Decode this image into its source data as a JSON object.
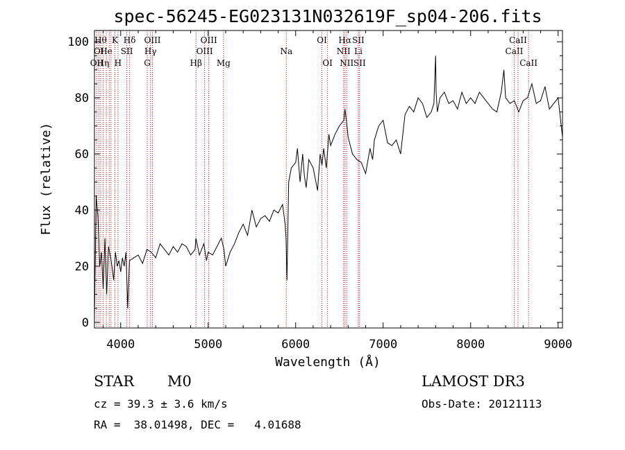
{
  "chart_data": {
    "type": "line",
    "title": "spec-56245-EG023131N032619F_sp04-206.fits",
    "xlabel": "Wavelength (Å)",
    "ylabel": "Flux (relative)",
    "xlim": [
      3700,
      9050
    ],
    "ylim": [
      -2,
      104
    ],
    "x_ticks": [
      4000,
      5000,
      6000,
      7000,
      8000,
      9000
    ],
    "y_ticks": [
      0,
      20,
      40,
      60,
      80,
      100
    ],
    "series": [
      {
        "x": [
          3700,
          3720,
          3740,
          3760,
          3780,
          3800,
          3820,
          3840,
          3860,
          3880,
          3900,
          3920,
          3940,
          3960,
          3980,
          4000,
          4020,
          4040,
          4060,
          4080,
          4100,
          4150,
          4200,
          4250,
          4300,
          4350,
          4400,
          4450,
          4500,
          4550,
          4600,
          4650,
          4700,
          4750,
          4800,
          4850,
          4860,
          4900,
          4950,
          4980,
          5000,
          5050,
          5100,
          5150,
          5180,
          5200,
          5250,
          5300,
          5350,
          5400,
          5450,
          5500,
          5550,
          5600,
          5650,
          5700,
          5750,
          5800,
          5850,
          5880,
          5890,
          5900,
          5920,
          5950,
          6000,
          6020,
          6050,
          6080,
          6100,
          6120,
          6150,
          6200,
          6250,
          6280,
          6300,
          6320,
          6350,
          6380,
          6400,
          6450,
          6500,
          6550,
          6563,
          6580,
          6600,
          6650,
          6700,
          6750,
          6800,
          6850,
          6880,
          6900,
          6950,
          7000,
          7050,
          7100,
          7150,
          7200,
          7250,
          7300,
          7350,
          7400,
          7450,
          7500,
          7550,
          7580,
          7600,
          7605,
          7620,
          7650,
          7700,
          7750,
          7800,
          7850,
          7900,
          7950,
          8000,
          8050,
          8100,
          8150,
          8200,
          8250,
          8300,
          8350,
          8380,
          8400,
          8450,
          8500,
          8550,
          8600,
          8650,
          8700,
          8750,
          8800,
          8850,
          8900,
          8950,
          9000,
          9050
        ],
        "y": [
          1,
          45,
          38,
          20,
          25,
          12,
          30,
          10,
          27,
          24,
          20,
          15,
          25,
          20,
          22,
          18,
          23,
          20,
          25,
          5,
          22,
          23,
          24,
          21,
          26,
          25,
          23,
          28,
          26,
          24,
          27,
          25,
          28,
          27,
          24,
          26,
          30,
          24,
          28,
          22,
          25,
          24,
          27,
          30,
          26,
          20,
          25,
          28,
          32,
          35,
          31,
          40,
          34,
          37,
          38,
          36,
          40,
          39,
          42,
          35,
          30,
          15,
          50,
          55,
          57,
          62,
          50,
          60,
          52,
          48,
          58,
          55,
          47,
          60,
          56,
          62,
          55,
          67,
          63,
          67,
          70,
          72,
          76,
          72,
          66,
          60,
          58,
          57,
          53,
          62,
          58,
          65,
          70,
          72,
          64,
          63,
          65,
          60,
          74,
          77,
          75,
          80,
          78,
          73,
          75,
          78,
          95,
          82,
          75,
          80,
          82,
          78,
          79,
          76,
          82,
          78,
          80,
          78,
          82,
          80,
          78,
          76,
          75,
          82,
          90,
          80,
          78,
          79,
          75,
          79,
          80,
          85,
          78,
          79,
          84,
          76,
          78,
          80,
          66
        ]
      }
    ],
    "spectral_lines": [
      {
        "w": 3727,
        "labels": [
          "OII"
        ],
        "row": 2
      },
      {
        "w": 3750,
        "labels": [
          "OI"
        ],
        "row": 1
      },
      {
        "w": 3771,
        "labels": [
          "Hθ"
        ],
        "row": 0
      },
      {
        "w": 3798,
        "labels": [
          "Hη"
        ],
        "row": 2
      },
      {
        "w": 3835,
        "labels": [
          "He"
        ],
        "row": 1
      },
      {
        "w": 3869,
        "labels": [],
        "row": 0
      },
      {
        "w": 3889,
        "labels": [],
        "row": 0
      },
      {
        "w": 3934,
        "labels": [
          "K"
        ],
        "row": 0
      },
      {
        "w": 3969,
        "labels": [
          "H"
        ],
        "row": 2
      },
      {
        "w": 4070,
        "labels": [
          "SII"
        ],
        "row": 1
      },
      {
        "w": 4102,
        "labels": [
          "Hδ"
        ],
        "row": 0
      },
      {
        "w": 4304,
        "labels": [
          "G"
        ],
        "row": 2
      },
      {
        "w": 4341,
        "labels": [
          "Hγ"
        ],
        "row": 1
      },
      {
        "w": 4363,
        "labels": [
          "OIII"
        ],
        "row": 0
      },
      {
        "w": 4861,
        "labels": [
          "Hβ"
        ],
        "row": 2
      },
      {
        "w": 4959,
        "labels": [
          "OIII"
        ],
        "row": 1
      },
      {
        "w": 5007,
        "labels": [
          "OIII"
        ],
        "row": 0
      },
      {
        "w": 5175,
        "labels": [
          "Mg"
        ],
        "row": 2
      },
      {
        "w": 5893,
        "labels": [
          "Na"
        ],
        "row": 1
      },
      {
        "w": 6300,
        "labels": [
          "OI"
        ],
        "row": 0
      },
      {
        "w": 6364,
        "labels": [
          "OI"
        ],
        "row": 2
      },
      {
        "w": 6548,
        "labels": [
          "NII"
        ],
        "row": 1
      },
      {
        "w": 6563,
        "labels": [
          "Hα"
        ],
        "row": 0
      },
      {
        "w": 6583,
        "labels": [
          "NII"
        ],
        "row": 2
      },
      {
        "w": 6716,
        "labels": [
          "SII"
        ],
        "row": 0
      },
      {
        "w": 6717,
        "labels": [
          "Li"
        ],
        "row": 1
      },
      {
        "w": 6731,
        "labels": [
          "SII"
        ],
        "row": 2
      },
      {
        "w": 8498,
        "labels": [
          "CaII"
        ],
        "row": 1
      },
      {
        "w": 8542,
        "labels": [
          "CaII"
        ],
        "row": 0
      },
      {
        "w": 8662,
        "labels": [
          "CaII"
        ],
        "row": 2
      }
    ]
  },
  "info": {
    "class": "STAR",
    "subclass": "M0",
    "survey": "LAMOST DR3",
    "redshift": "cz = 39.3 ± 3.6 km/s",
    "obs_date": "Obs-Date: 20121113",
    "coords": "RA =  38.01498, DEC =   4.01688"
  },
  "colors": {
    "spectrum": "#000000",
    "line_marker": "#c00000",
    "axis": "#000000"
  }
}
